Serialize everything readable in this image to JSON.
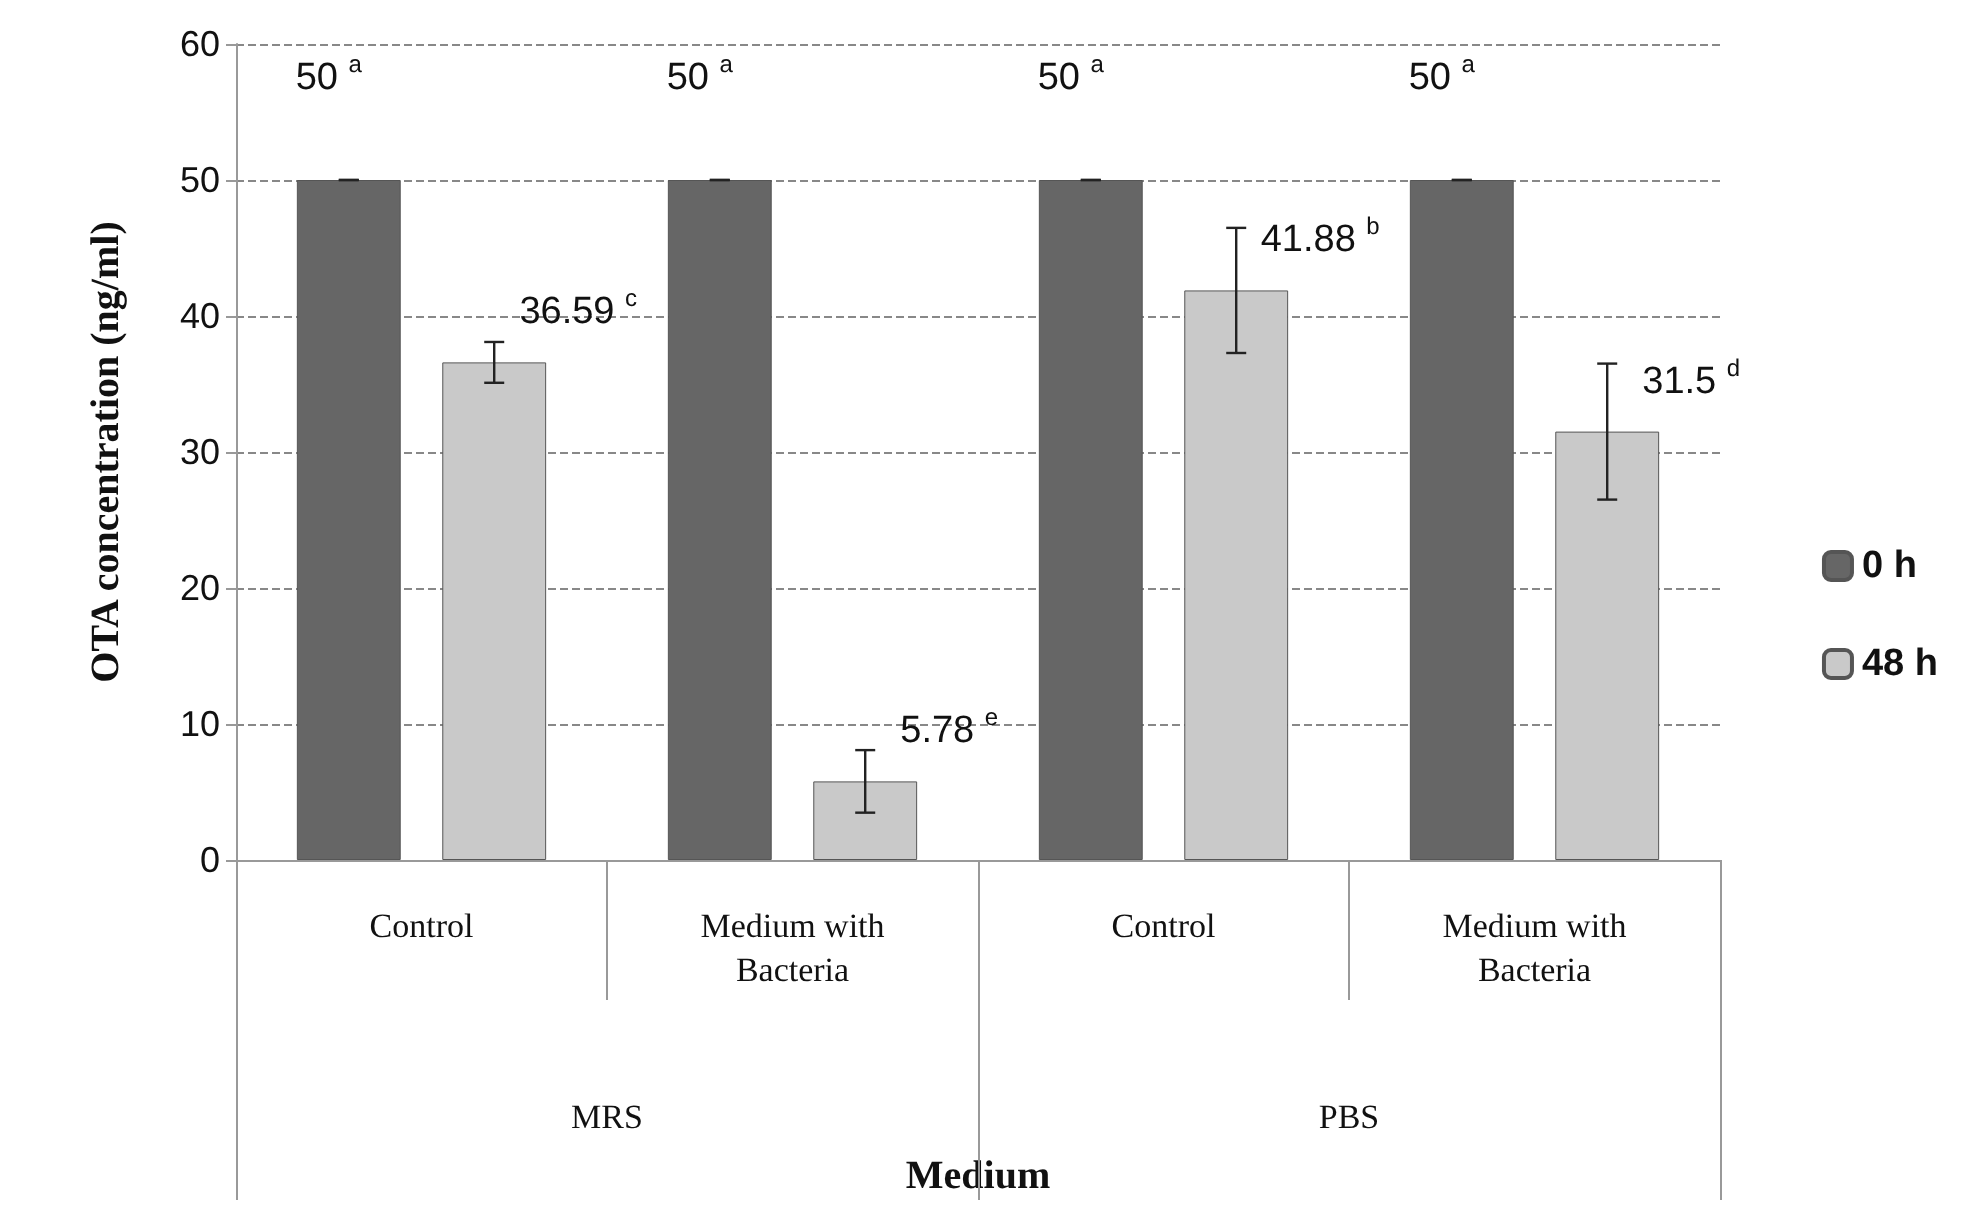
{
  "chart_data": {
    "type": "bar",
    "xlabel": "Medium",
    "ylabel": "OTA concentration (ng/ml)",
    "categories": [
      "Control",
      "Medium with\nBacteria",
      "Control",
      "Medium with\nBacteria"
    ],
    "annotations": [
      "MRS",
      "PBS"
    ],
    "series": [
      {
        "name": "0 h",
        "color": "#666666",
        "values": [
          50,
          50,
          50,
          50
        ],
        "errors": [
          0,
          0,
          0,
          0
        ],
        "value_labels": [
          "50 $^{a}$",
          "50 $^{a}$",
          "50 $^{a}$",
          "50 $^{a}$"
        ]
      },
      {
        "name": "48 h",
        "color": "#c9c9c9",
        "values": [
          36.59,
          5.78,
          41.88,
          31.5
        ],
        "errors": [
          1.5,
          2.3,
          4.6,
          5
        ],
        "value_labels": [
          "36.59 $^{c}$",
          "5.78 $^{e}$",
          "41.88 $^{b}$",
          "31.5 $^{d}$"
        ]
      }
    ],
    "ylim": [
      0,
      60
    ],
    "yticks": [
      0,
      10,
      20,
      30,
      40,
      50,
      60
    ],
    "grid": "y",
    "legend": "right"
  }
}
